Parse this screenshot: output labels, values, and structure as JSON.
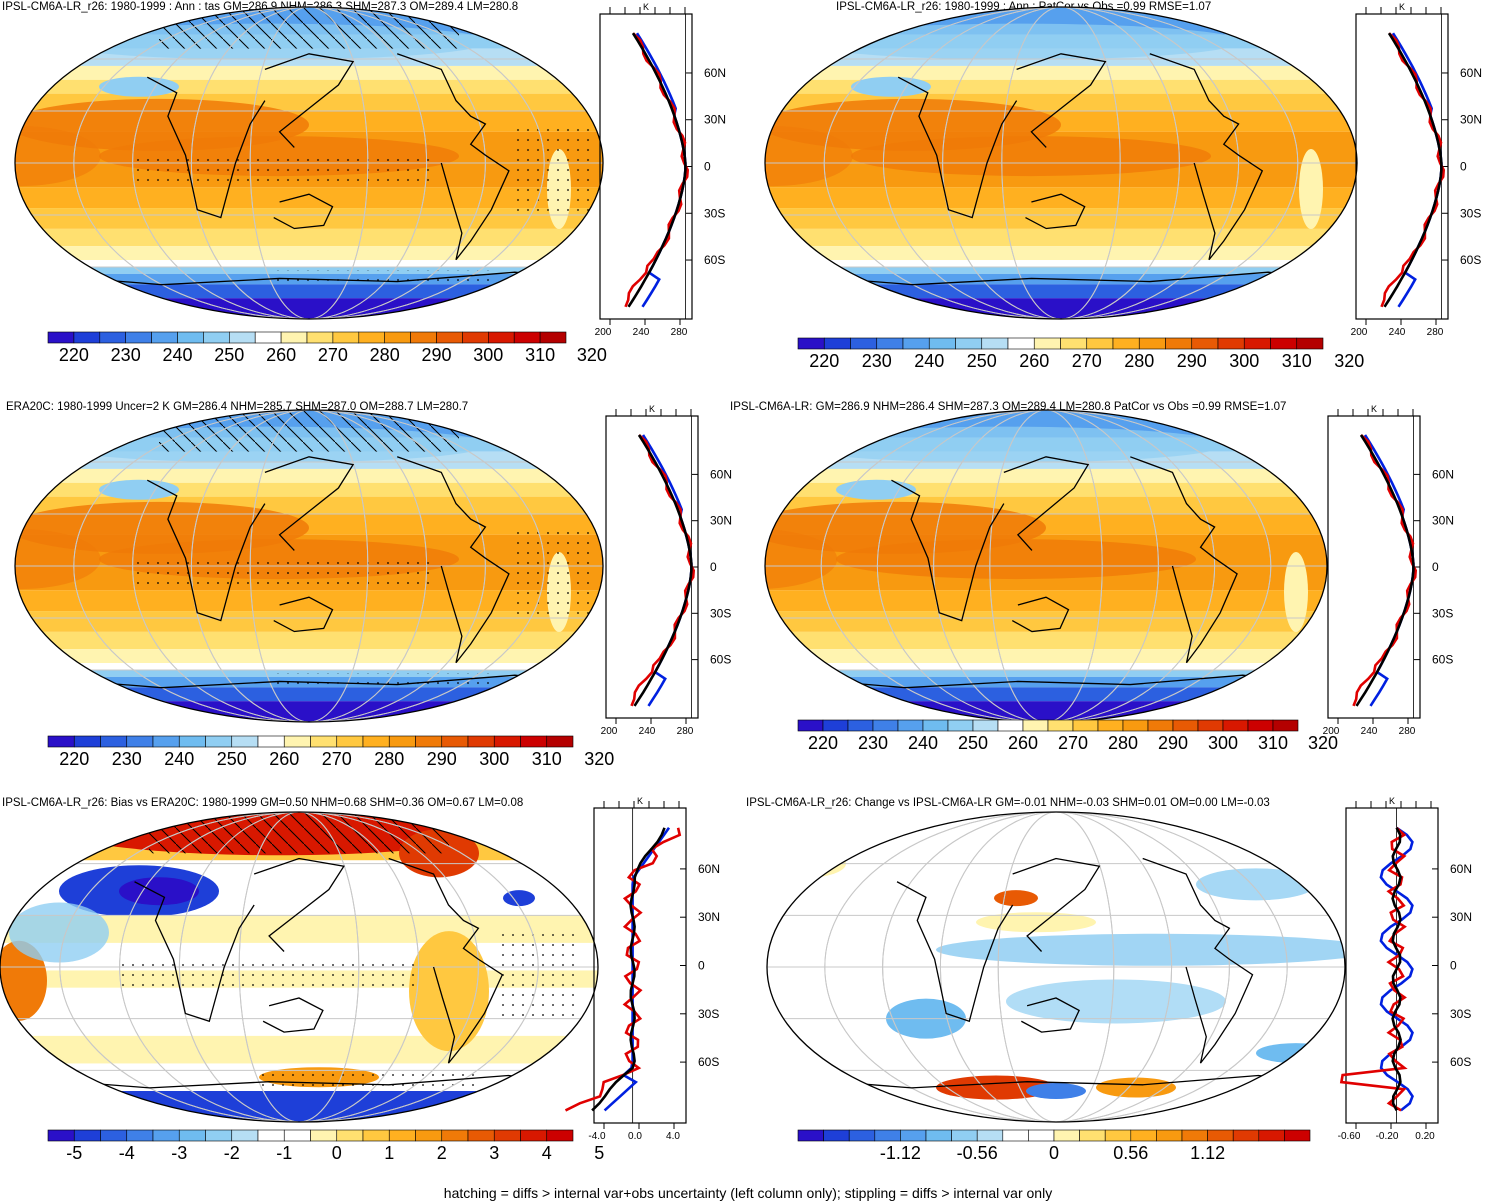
{
  "panels": [
    {
      "title": "IPSL-CM6A-LR_r26: 1980-1999 : Ann : tas GM=286.9 NHM=286.3 SHM=287.3 OM=289.4 LM=280.8",
      "kind": "abs",
      "stipple": true,
      "hatch": true,
      "colorbar_labels": [
        "220",
        "230",
        "240",
        "250",
        "260",
        "270",
        "280",
        "290",
        "300",
        "310",
        "320"
      ],
      "profile_unit": "K",
      "profile_xticks": [
        "200",
        "240",
        "280"
      ]
    },
    {
      "title": "IPSL-CM6A-LR_r26: 1980-1999 : Ann : PatCor vs Obs =0.99 RMSE=1.07",
      "kind": "abs",
      "stipple": false,
      "hatch": false,
      "colorbar_labels": [
        "220",
        "230",
        "240",
        "250",
        "260",
        "270",
        "280",
        "290",
        "300",
        "310",
        "320"
      ],
      "profile_unit": "K",
      "profile_xticks": [
        "200",
        "240",
        "280"
      ]
    },
    {
      "title": "ERA20C: 1980-1999 Uncer=2 K GM=286.4 NHM=285.7 SHM=287.0 OM=288.7 LM=280.7",
      "kind": "abs",
      "stipple": true,
      "hatch": true,
      "colorbar_labels": [
        "220",
        "230",
        "240",
        "250",
        "260",
        "270",
        "280",
        "290",
        "300",
        "310",
        "320"
      ],
      "profile_unit": "K",
      "profile_xticks": [
        "200",
        "240",
        "280"
      ]
    },
    {
      "title": "IPSL-CM6A-LR: GM=286.9 NHM=286.4 SHM=287.3 OM=289.4 LM=280.8 PatCor vs Obs =0.99 RMSE=1.07",
      "kind": "abs",
      "stipple": false,
      "hatch": false,
      "colorbar_labels": [
        "220",
        "230",
        "240",
        "250",
        "260",
        "270",
        "280",
        "290",
        "300",
        "310",
        "320"
      ],
      "profile_unit": "K",
      "profile_xticks": [
        "200",
        "240",
        "280"
      ]
    },
    {
      "title": "IPSL-CM6A-LR_r26: Bias vs ERA20C: 1980-1999 GM=0.50 NHM=0.68 SHM=0.36 OM=0.67 LM=0.08",
      "kind": "bias",
      "stipple": true,
      "hatch": true,
      "colorbar_labels": [
        "-5",
        "-4",
        "-3",
        "-2",
        "-1",
        "0",
        "1",
        "2",
        "3",
        "4",
        "5"
      ],
      "profile_unit": "K",
      "profile_xticks": [
        "-4.0",
        "0.0",
        "4.0"
      ]
    },
    {
      "title": "IPSL-CM6A-LR_r26: Change vs IPSL-CM6A-LR GM=-0.01 NHM=-0.03 SHM=0.01 OM=0.00 LM=-0.03",
      "kind": "change",
      "stipple": false,
      "hatch": false,
      "colorbar_labels": [
        "-1.12",
        "-0.56",
        "0",
        "0.56",
        "1.12"
      ],
      "profile_unit": "K",
      "profile_xticks": [
        "-0.60",
        "-0.20",
        "0.20"
      ]
    }
  ],
  "lat_labels": [
    "60N",
    "30N",
    "0",
    "30S",
    "60S"
  ],
  "colors": {
    "abs": [
      "#2a10c8",
      "#1e3fd8",
      "#2c60e0",
      "#3f80e8",
      "#56a0ee",
      "#6fbcf0",
      "#90cef2",
      "#b6def4",
      "#ffffff",
      "#fff4b0",
      "#ffe070",
      "#ffc840",
      "#ffb020",
      "#f89a10",
      "#f07a08",
      "#e85a04",
      "#e03a02",
      "#d81800",
      "#cc0000",
      "#b40000"
    ],
    "bias": [
      "#2a10c8",
      "#1e3fd8",
      "#2c60e0",
      "#3f80e8",
      "#56a0ee",
      "#6fbcf0",
      "#90cef2",
      "#b6def4",
      "#ffffff",
      "#ffffff",
      "#fff4b0",
      "#ffe070",
      "#ffc840",
      "#ffb020",
      "#f89a10",
      "#f07a08",
      "#e85a04",
      "#e03a02",
      "#d81800",
      "#cc0000"
    ],
    "change": [
      "#2a10c8",
      "#1e3fd8",
      "#2c60e0",
      "#3f80e8",
      "#56a0ee",
      "#6fbcf0",
      "#90cef2",
      "#b6def4",
      "#ffffff",
      "#ffffff",
      "#fff4b0",
      "#ffe070",
      "#ffc840",
      "#ffb020",
      "#f89a10",
      "#f07a08",
      "#e85a04",
      "#e03a02",
      "#d81800",
      "#cc0000"
    ]
  },
  "series_colors": {
    "model": "#e00000",
    "obs": "#0020e0",
    "ref": "#000000"
  },
  "footer": "hatching = diffs > internal var+obs uncertainty (left column only); stippling = diffs > internal var only"
}
